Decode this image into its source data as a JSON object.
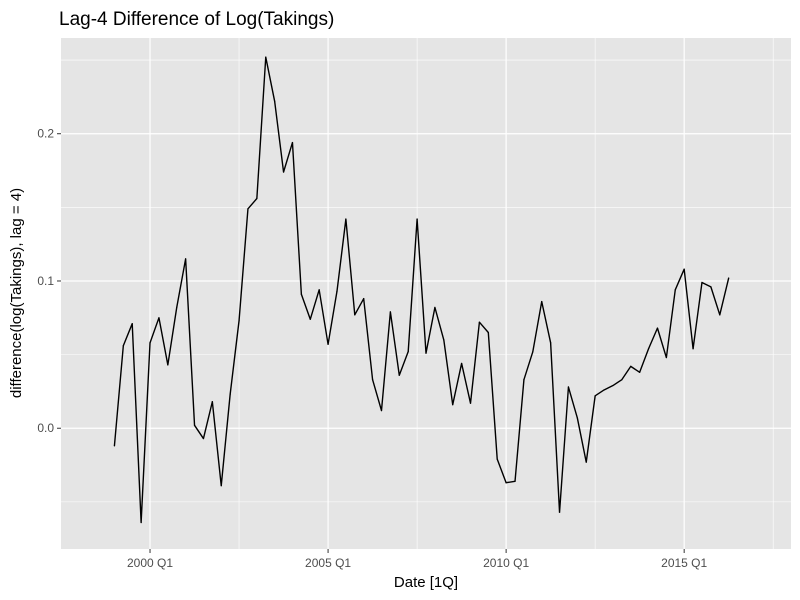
{
  "chart_data": {
    "type": "line",
    "title": "Lag-4 Difference of Log(Takings)",
    "xlabel": "Date [1Q]",
    "ylabel": "difference(log(Takings), lag = 4)",
    "x_ticks": [
      "2000 Q1",
      "2005 Q1",
      "2010 Q1",
      "2015 Q1"
    ],
    "y_ticks": [
      "0.0",
      "0.1",
      "0.2"
    ],
    "x_range": [
      "1997 Q3",
      "2018 Q1"
    ],
    "ylim": [
      -0.082,
      0.265
    ],
    "grid": true,
    "colors": {
      "panel": "#e5e5e5",
      "grid": "#ffffff",
      "line": "#000000",
      "tick": "#4d4d4d"
    },
    "x": [
      "1999 Q1",
      "1999 Q2",
      "1999 Q3",
      "1999 Q4",
      "2000 Q1",
      "2000 Q2",
      "2000 Q3",
      "2000 Q4",
      "2001 Q1",
      "2001 Q2",
      "2001 Q3",
      "2001 Q4",
      "2002 Q1",
      "2002 Q2",
      "2002 Q3",
      "2002 Q4",
      "2003 Q1",
      "2003 Q2",
      "2003 Q3",
      "2003 Q4",
      "2004 Q1",
      "2004 Q2",
      "2004 Q3",
      "2004 Q4",
      "2005 Q1",
      "2005 Q2",
      "2005 Q3",
      "2005 Q4",
      "2006 Q1",
      "2006 Q2",
      "2006 Q3",
      "2006 Q4",
      "2007 Q1",
      "2007 Q2",
      "2007 Q3",
      "2007 Q4",
      "2008 Q1",
      "2008 Q2",
      "2008 Q3",
      "2008 Q4",
      "2009 Q1",
      "2009 Q2",
      "2009 Q3",
      "2009 Q4",
      "2010 Q1",
      "2010 Q2",
      "2010 Q3",
      "2010 Q4",
      "2011 Q1",
      "2011 Q2",
      "2011 Q3",
      "2011 Q4",
      "2012 Q1",
      "2012 Q2",
      "2012 Q3",
      "2012 Q4",
      "2013 Q1",
      "2013 Q2",
      "2013 Q3",
      "2013 Q4",
      "2014 Q1",
      "2014 Q2",
      "2014 Q3",
      "2014 Q4",
      "2015 Q1",
      "2015 Q2",
      "2015 Q3",
      "2015 Q4",
      "2016 Q1",
      "2016 Q2"
    ],
    "y": [
      -0.012,
      0.056,
      0.071,
      -0.064,
      0.058,
      0.075,
      0.043,
      0.082,
      0.115,
      0.002,
      -0.007,
      0.018,
      -0.039,
      0.023,
      0.073,
      0.149,
      0.156,
      0.252,
      0.222,
      0.174,
      0.194,
      0.091,
      0.074,
      0.094,
      0.057,
      0.093,
      0.142,
      0.077,
      0.088,
      0.033,
      0.012,
      0.079,
      0.036,
      0.052,
      0.142,
      0.051,
      0.082,
      0.06,
      0.016,
      0.044,
      0.017,
      0.072,
      0.065,
      -0.021,
      -0.037,
      -0.036,
      0.033,
      0.052,
      0.086,
      0.058,
      -0.057,
      0.028,
      0.007,
      -0.023,
      0.022,
      0.026,
      0.029,
      0.033,
      0.042,
      0.038,
      0.054,
      0.068,
      0.048,
      0.094,
      0.108,
      0.054,
      0.099,
      0.096,
      0.077,
      0.102
    ]
  }
}
